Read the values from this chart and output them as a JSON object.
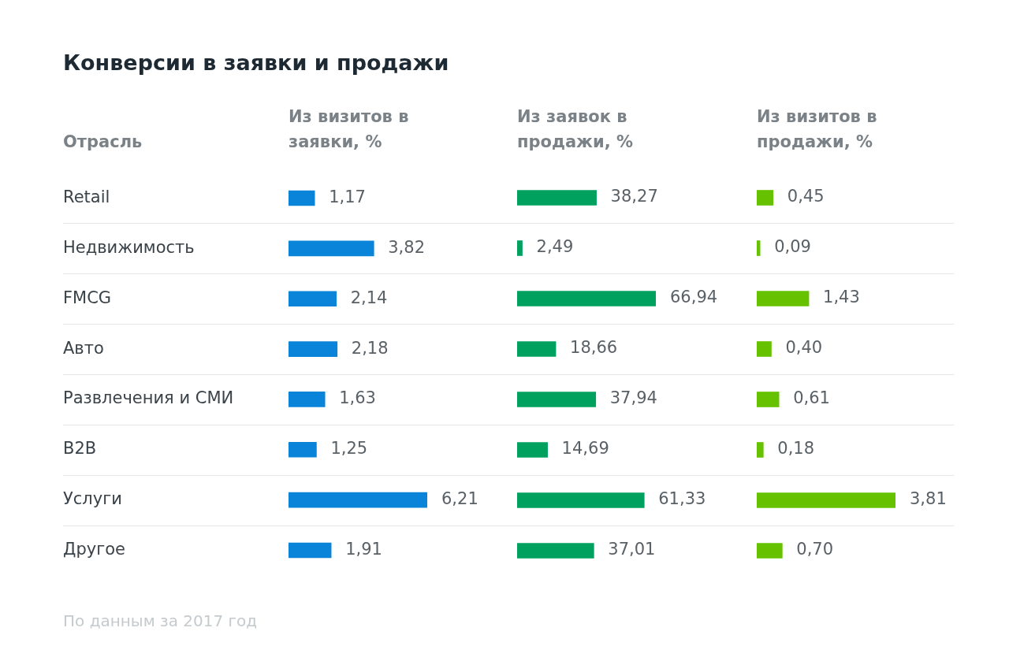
{
  "chart_data": [
    {
      "type": "bar",
      "orientation": "horizontal",
      "title": "Конверсии в заявки и продажи",
      "subtitle": "Из визитов в заявки, %",
      "ylabel": "Отрасль",
      "categories": [
        "Retail",
        "Недвижимость",
        "FMCG",
        "Авто",
        "Развлечения и СМИ",
        "B2B",
        "Услуги",
        "Другое"
      ],
      "values": [
        1.17,
        3.82,
        2.14,
        2.18,
        1.63,
        1.25,
        6.21,
        1.91
      ],
      "color": "#0a84d8",
      "value_labels": [
        "1,17",
        "3,82",
        "2,14",
        "2,18",
        "1,63",
        "1,25",
        "6,21",
        "1,91"
      ],
      "tick_labels": "y",
      "grid": "y",
      "annotations": [
        "По данным за 2017 год"
      ]
    },
    {
      "type": "bar",
      "orientation": "horizontal",
      "subtitle": "Из заявок в продажи, %",
      "categories": [
        null,
        null,
        null,
        null,
        null,
        null,
        null,
        null
      ],
      "values": [
        38.27,
        2.49,
        66.94,
        18.66,
        37.94,
        14.69,
        61.33,
        37.01
      ],
      "color": "#00a05e",
      "value_labels": [
        "38,27",
        "2,49",
        "66,94",
        "18,66",
        "37,94",
        "14,69",
        "61,33",
        "37,01"
      ],
      "tick_labels": false,
      "grid": "y"
    },
    {
      "type": "bar",
      "orientation": "horizontal",
      "subtitle": "Из визитов в продажи, %",
      "categories": [
        null,
        null,
        null,
        null,
        null,
        null,
        null,
        null
      ],
      "values": [
        0.45,
        0.09,
        1.43,
        0.4,
        0.61,
        0.18,
        3.81,
        0.7
      ],
      "color": "#66c200",
      "value_labels": [
        "0,45",
        "0,09",
        "1,43",
        "0,40",
        "0,61",
        "0,18",
        "3,81",
        "0,70"
      ],
      "tick_labels": false,
      "grid": "y"
    }
  ]
}
